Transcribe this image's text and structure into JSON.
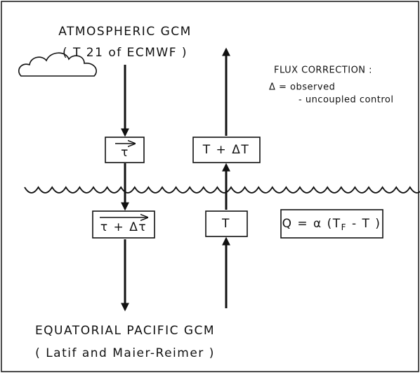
{
  "atmosphere": {
    "title": "ATMOSPHERIC GCM",
    "subtitle": "( T 21 of ECMWF )"
  },
  "flux_correction": {
    "title": "FLUX CORRECTION :",
    "line1": "Δ = observed",
    "line2": "- uncoupled control"
  },
  "boxes": {
    "tau": "τ",
    "t_plus_dt": "T + ΔT",
    "tau_plus_dtau": "τ + Δτ",
    "t": "T",
    "q": {
      "prefix": "Q = α (T",
      "subscript": "F",
      "suffix": " - T )"
    }
  },
  "ocean": {
    "title": "EQUATORIAL PACIFIC GCM",
    "subtitle": "( Latif and Maier-Reimer )"
  }
}
